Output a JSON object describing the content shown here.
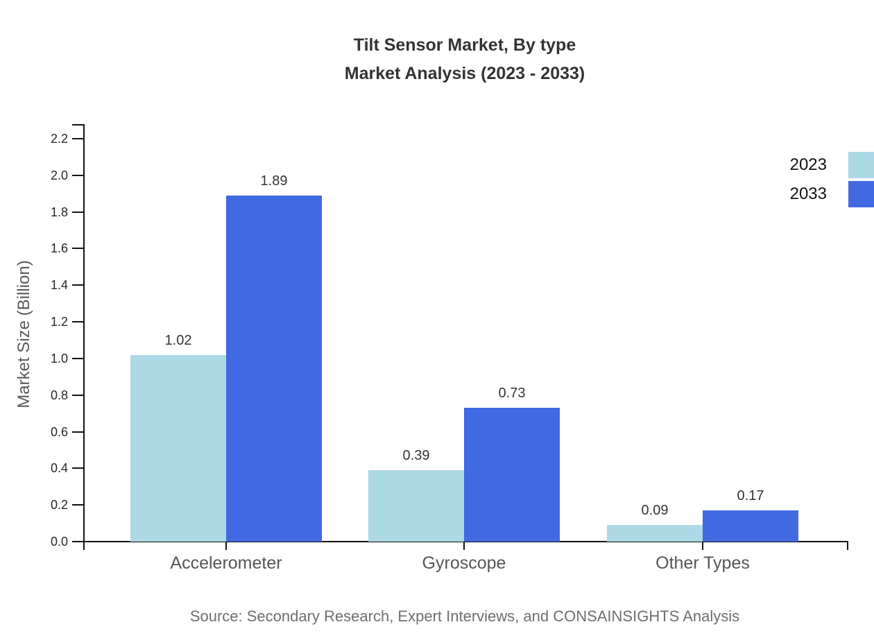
{
  "title": {
    "line1": "Tilt Sensor Market, By type",
    "line2": "Market Analysis (2023 - 2033)"
  },
  "source": "Source: Secondary Research, Expert Interviews, and CONSAINSIGHTS Analysis",
  "chart_data": {
    "type": "bar",
    "title": "Tilt Sensor Market, By type — Market Analysis (2023 - 2033)",
    "categories": [
      "Accelerometer",
      "Gyroscope",
      "Other Types"
    ],
    "series": [
      {
        "name": "2023",
        "color": "#ADD8E6",
        "values": [
          1.02,
          0.39,
          0.09
        ]
      },
      {
        "name": "2033",
        "color": "#4169E1",
        "values": [
          1.89,
          0.73,
          0.17
        ]
      }
    ],
    "xlabel": "",
    "ylabel": "Market Size (Billion)",
    "ylim": [
      0,
      2.2
    ],
    "ytick_step": 0.2,
    "ytick_labels": [
      "0.0",
      "0.2",
      "0.4",
      "0.6",
      "0.8",
      "1.0",
      "1.2",
      "1.4",
      "1.6",
      "1.8",
      "2.0",
      "2.2"
    ],
    "value_labels": [
      "1.02",
      "1.89",
      "0.39",
      "0.73",
      "0.09",
      "0.17"
    ],
    "grid": false,
    "legend_position": "right",
    "axis_color": "#111111"
  }
}
